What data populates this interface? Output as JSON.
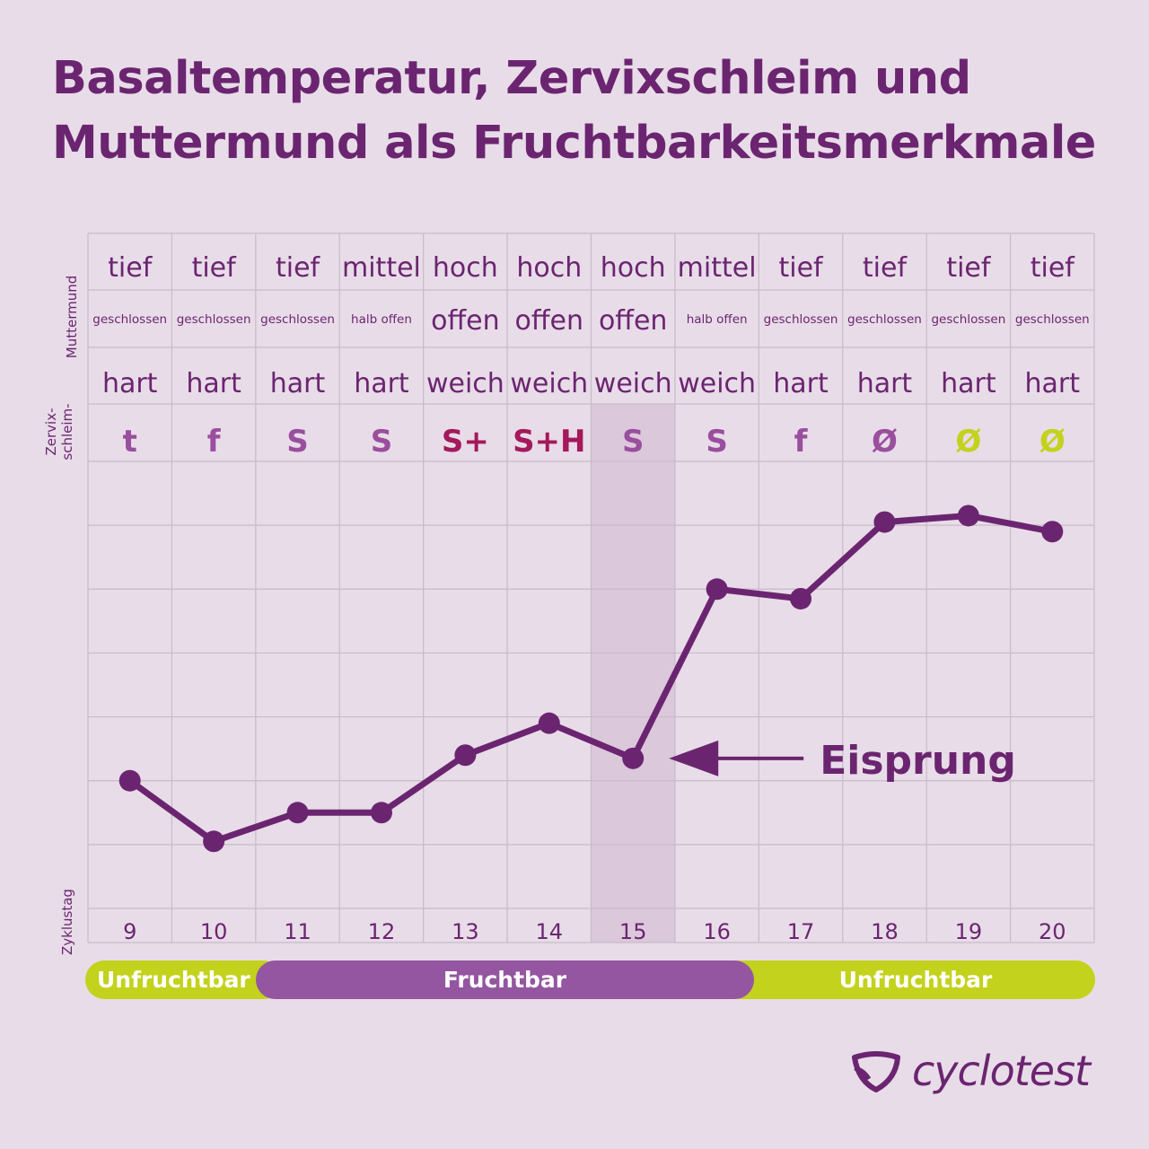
{
  "title": {
    "line1": "Basaltemperatur, Zervixschleim und",
    "line2": "Muttermund als Fruchtbarkeitsmerkmale"
  },
  "row_labels": {
    "muttermund": "Muttermund",
    "zervix_line1": "Zervix-",
    "zervix_line2": "schleim-",
    "zyklustag": "Zyklustag"
  },
  "chart_data": {
    "type": "line",
    "x": [
      9,
      10,
      11,
      12,
      13,
      14,
      15,
      16,
      17,
      18,
      19,
      20
    ],
    "values": [
      2.0,
      1.05,
      1.5,
      1.5,
      2.4,
      2.9,
      2.35,
      5.0,
      4.85,
      6.05,
      6.15,
      5.9
    ],
    "ylim": [
      0,
      7
    ],
    "grid": true,
    "highlight_x": 15,
    "annotation": {
      "text": "Eisprung",
      "x": 15
    },
    "muttermund_position": [
      "tief",
      "tief",
      "tief",
      "mittel",
      "hoch",
      "hoch",
      "hoch",
      "mittel",
      "tief",
      "tief",
      "tief",
      "tief"
    ],
    "muttermund_opening": [
      "geschlossen",
      "geschlossen",
      "geschlossen",
      "halb offen",
      "offen",
      "offen",
      "offen",
      "halb offen",
      "geschlossen",
      "geschlossen",
      "geschlossen",
      "geschlossen"
    ],
    "muttermund_firmness": [
      "hart",
      "hart",
      "hart",
      "hart",
      "weich",
      "weich",
      "weich",
      "weich",
      "hart",
      "hart",
      "hart",
      "hart"
    ],
    "zervixschleim": [
      "t",
      "f",
      "S",
      "S",
      "S+",
      "S+H",
      "S",
      "S",
      "f",
      "Ø",
      "Ø",
      "Ø"
    ],
    "zervixschleim_colors": [
      "#9a4e9e",
      "#9a4e9e",
      "#9a4e9e",
      "#9a4e9e",
      "#a3195b",
      "#a3195b",
      "#9a4e9e",
      "#9a4e9e",
      "#9a4e9e",
      "#9a4e9e",
      "#c3d21c",
      "#c3d21c"
    ],
    "phases": [
      {
        "label": "Unfruchtbar",
        "from": 9,
        "to": 10,
        "color": "#c3d21c"
      },
      {
        "label": "Fruchtbar",
        "from": 11,
        "to": 16,
        "color": "#9456a0"
      },
      {
        "label": "Unfruchtbar",
        "from": 17,
        "to": 20,
        "color": "#c3d21c"
      }
    ]
  },
  "colors": {
    "line": "#6b2570",
    "text": "#6b2570",
    "grid": "#c9bac9",
    "highlight": "#dbc8db",
    "fertile": "#9456a0",
    "infertile": "#c3d21c",
    "background": "#e8dce8"
  },
  "logo": {
    "text": "cyclotest",
    "icon": "cyclotest-shield-icon"
  }
}
